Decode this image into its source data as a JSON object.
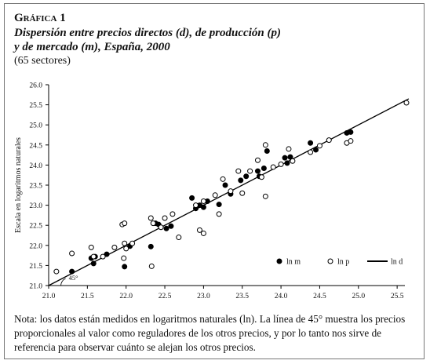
{
  "figure": {
    "label": "Gráfica 1",
    "title_line1": "Dispersión entre precios directos (d), de producción (p)",
    "title_line2": "y de mercado (m), España, 2000",
    "subtitle": "(65 sectores)",
    "note": "Nota: los datos están medidos en logaritmos naturales (ln). La línea de 45° muestra los precios proporcionales al valor como reguladores de los otros precios, y por lo tanto nos sirve de referencia para observar cuánto se alejan los otros precios."
  },
  "chart_data": {
    "type": "scatter",
    "ylabel": "Escala en logaritmos naturales",
    "xlim": [
      21.0,
      25.6
    ],
    "ylim": [
      21.0,
      26.0
    ],
    "xticks": [
      "21.0",
      "21.5",
      "22.0",
      "22.5",
      "23.0",
      "23.5",
      "24.0",
      "24.5",
      "25.0",
      "25.5"
    ],
    "yticks": [
      "21.0",
      "21.5",
      "22.0",
      "22.5",
      "23.0",
      "23.5",
      "24.0",
      "24.5",
      "25.0",
      "25.5",
      "26.0"
    ],
    "grid": false,
    "legend_position": "bottom-right",
    "annotation": "45°",
    "line_45": {
      "name": "ln d",
      "from": [
        21.0,
        21.0
      ],
      "to": [
        25.65,
        25.65
      ]
    },
    "series": [
      {
        "name": "ln m",
        "marker": "filled-circle",
        "points": [
          [
            21.3,
            21.35
          ],
          [
            21.55,
            21.68
          ],
          [
            21.58,
            21.55
          ],
          [
            21.6,
            21.72
          ],
          [
            21.75,
            21.78
          ],
          [
            21.98,
            21.47
          ],
          [
            22.05,
            21.98
          ],
          [
            22.32,
            21.97
          ],
          [
            22.38,
            22.55
          ],
          [
            22.42,
            22.52
          ],
          [
            22.52,
            22.42
          ],
          [
            22.58,
            22.48
          ],
          [
            22.85,
            23.18
          ],
          [
            22.9,
            22.92
          ],
          [
            22.95,
            23.0
          ],
          [
            23.0,
            22.95
          ],
          [
            23.05,
            23.1
          ],
          [
            23.2,
            23.02
          ],
          [
            23.28,
            23.5
          ],
          [
            23.35,
            23.28
          ],
          [
            23.48,
            23.62
          ],
          [
            23.55,
            23.72
          ],
          [
            23.7,
            23.85
          ],
          [
            23.72,
            23.72
          ],
          [
            23.78,
            23.92
          ],
          [
            23.82,
            24.35
          ],
          [
            24.05,
            24.18
          ],
          [
            24.08,
            24.05
          ],
          [
            24.12,
            24.2
          ],
          [
            24.38,
            24.55
          ],
          [
            24.45,
            24.38
          ],
          [
            24.85,
            24.8
          ],
          [
            24.9,
            24.82
          ]
        ]
      },
      {
        "name": "ln p",
        "marker": "open-circle",
        "points": [
          [
            21.1,
            21.35
          ],
          [
            21.3,
            21.8
          ],
          [
            21.55,
            21.95
          ],
          [
            21.58,
            21.72
          ],
          [
            21.7,
            21.72
          ],
          [
            21.85,
            21.95
          ],
          [
            21.95,
            22.52
          ],
          [
            21.98,
            22.55
          ],
          [
            21.98,
            22.05
          ],
          [
            21.97,
            21.68
          ],
          [
            22.0,
            21.92
          ],
          [
            22.08,
            22.05
          ],
          [
            22.32,
            22.68
          ],
          [
            22.35,
            22.55
          ],
          [
            22.33,
            21.48
          ],
          [
            22.45,
            22.45
          ],
          [
            22.5,
            22.68
          ],
          [
            22.6,
            22.78
          ],
          [
            22.68,
            22.2
          ],
          [
            22.9,
            23.0
          ],
          [
            22.95,
            22.38
          ],
          [
            23.0,
            22.3
          ],
          [
            23.0,
            23.1
          ],
          [
            23.15,
            23.25
          ],
          [
            23.2,
            22.78
          ],
          [
            23.25,
            23.65
          ],
          [
            23.35,
            23.35
          ],
          [
            23.45,
            23.85
          ],
          [
            23.5,
            23.3
          ],
          [
            23.6,
            23.85
          ],
          [
            23.7,
            24.12
          ],
          [
            23.75,
            23.7
          ],
          [
            23.8,
            24.5
          ],
          [
            23.8,
            23.22
          ],
          [
            23.9,
            23.95
          ],
          [
            24.0,
            24.02
          ],
          [
            24.1,
            24.4
          ],
          [
            24.15,
            24.1
          ],
          [
            24.38,
            24.32
          ],
          [
            24.5,
            24.48
          ],
          [
            24.62,
            24.62
          ],
          [
            24.85,
            24.55
          ],
          [
            24.9,
            24.6
          ],
          [
            25.62,
            25.55
          ]
        ]
      }
    ]
  }
}
